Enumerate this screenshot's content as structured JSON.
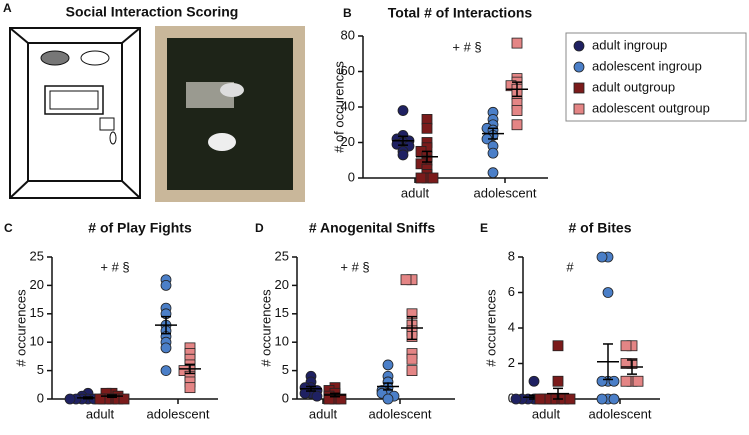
{
  "panel_a": {
    "label": "A",
    "title": "Social Interaction Scoring"
  },
  "chart_data": [
    {
      "type": "strip",
      "label": "B",
      "title": "Total # of Interactions",
      "annotation": "+ # §",
      "ylabel": "# of occurences",
      "categories": [
        "adult",
        "adolescent"
      ],
      "ylim": [
        0,
        80
      ],
      "yticks": [
        0,
        20,
        40,
        60,
        80
      ],
      "legend": "right",
      "series": [
        {
          "name": "adult ingroup",
          "color": "#1f2162",
          "marker": "circle",
          "values": [
            [
              38,
              24,
              22,
              21,
              20,
              19,
              18,
              15,
              13
            ],
            []
          ],
          "means": [
            21,
            null
          ],
          "errors": [
            2.5,
            null
          ]
        },
        {
          "name": "adolescent ingroup",
          "color": "#4b7fc8",
          "marker": "circle",
          "values": [
            [],
            [
              37,
              33,
              30,
              28,
              27,
              24,
              22,
              18,
              14,
              3
            ]
          ],
          "means": [
            null,
            25
          ],
          "errors": [
            null,
            3
          ]
        },
        {
          "name": "adult outgroup",
          "color": "#7b1b1b",
          "marker": "square",
          "values": [
            [
              33,
              28,
              20,
              17,
              15,
              12,
              10,
              8,
              5,
              2,
              0,
              0,
              0
            ],
            []
          ],
          "means": [
            12,
            null
          ],
          "errors": [
            3,
            null
          ]
        },
        {
          "name": "adolescent outgroup",
          "color": "#e48585",
          "marker": "square",
          "values": [
            [],
            [
              76,
              56,
              54,
              52,
              50,
              47,
              42,
              38,
              30
            ]
          ],
          "means": [
            null,
            50
          ],
          "errors": [
            null,
            4
          ]
        }
      ]
    },
    {
      "type": "strip",
      "label": "C",
      "title": "# of Play Fights",
      "annotation": "+ # §",
      "ylabel": "# occurences",
      "categories": [
        "adult",
        "adolescent"
      ],
      "ylim": [
        0,
        25
      ],
      "yticks": [
        0,
        5,
        10,
        15,
        20,
        25
      ],
      "series": [
        {
          "color": "#1f2162",
          "marker": "circle",
          "values": [
            [
              1,
              0.5,
              0,
              0,
              0,
              0,
              0,
              0
            ],
            []
          ],
          "means": [
            0.2,
            null
          ],
          "errors": [
            0.15,
            null
          ]
        },
        {
          "color": "#4b7fc8",
          "marker": "circle",
          "values": [
            [],
            [
              21,
              20,
              16,
              15,
              13,
              12,
              11,
              10,
              9,
              5
            ]
          ],
          "means": [
            null,
            13
          ],
          "errors": [
            null,
            1.5
          ]
        },
        {
          "color": "#7b1b1b",
          "marker": "square",
          "values": [
            [
              1,
              1,
              0.5,
              0,
              0,
              0,
              0,
              0
            ],
            []
          ],
          "means": [
            0.5,
            null
          ],
          "errors": [
            0.2,
            null
          ]
        },
        {
          "color": "#e48585",
          "marker": "square",
          "values": [
            [],
            [
              9,
              8,
              7,
              6,
              5,
              5,
              4,
              3,
              2
            ]
          ],
          "means": [
            null,
            5.3
          ],
          "errors": [
            null,
            0.8
          ]
        }
      ]
    },
    {
      "type": "strip",
      "label": "D",
      "title": "# Anogenital Sniffs",
      "annotation": "+ # §",
      "ylabel": "# occurences",
      "categories": [
        "adult",
        "adolescent"
      ],
      "ylim": [
        0,
        25
      ],
      "yticks": [
        0,
        5,
        10,
        15,
        20,
        25
      ],
      "series": [
        {
          "color": "#1f2162",
          "marker": "circle",
          "values": [
            [
              4,
              3,
              2,
              2,
              1.5,
              1,
              1,
              0.5
            ],
            []
          ],
          "means": [
            1.8,
            null
          ],
          "errors": [
            0.4,
            null
          ]
        },
        {
          "color": "#4b7fc8",
          "marker": "circle",
          "values": [
            [],
            [
              6,
              4,
              3,
              2,
              1.5,
              1,
              1,
              0.5,
              0
            ]
          ],
          "means": [
            null,
            2.2
          ],
          "errors": [
            null,
            0.6
          ]
        },
        {
          "color": "#7b1b1b",
          "marker": "square",
          "values": [
            [
              2,
              1.5,
              1,
              0.5,
              0,
              0,
              0
            ],
            []
          ],
          "means": [
            0.7,
            null
          ],
          "errors": [
            0.3,
            null
          ]
        },
        {
          "color": "#e48585",
          "marker": "square",
          "values": [
            [],
            [
              21,
              21,
              15,
              13,
              12,
              11,
              8,
              7,
              5
            ]
          ],
          "means": [
            null,
            12.5
          ],
          "errors": [
            null,
            2
          ]
        }
      ]
    },
    {
      "type": "strip",
      "label": "E",
      "title": "# of Bites",
      "annotation": "#",
      "ylabel": "# occurences",
      "categories": [
        "adult",
        "adolescent"
      ],
      "ylim": [
        0,
        8
      ],
      "yticks": [
        0,
        2,
        4,
        6,
        8
      ],
      "series": [
        {
          "color": "#1f2162",
          "marker": "circle",
          "values": [
            [
              1,
              0,
              0,
              0,
              0,
              0,
              0,
              0
            ],
            []
          ],
          "means": [
            0.1,
            null
          ],
          "errors": [
            0.1,
            null
          ]
        },
        {
          "color": "#4b7fc8",
          "marker": "circle",
          "values": [
            [],
            [
              8,
              8,
              6,
              1,
              1,
              1,
              0,
              0,
              0
            ]
          ],
          "means": [
            null,
            2.1
          ],
          "errors": [
            null,
            1
          ]
        },
        {
          "color": "#7b1b1b",
          "marker": "square",
          "values": [
            [
              3,
              1,
              0,
              0,
              0,
              0,
              0,
              0
            ],
            []
          ],
          "means": [
            0.3,
            null
          ],
          "errors": [
            0.3,
            null
          ]
        },
        {
          "color": "#e48585",
          "marker": "square",
          "values": [
            [],
            [
              3,
              3,
              2,
              2,
              1,
              1,
              1
            ]
          ],
          "means": [
            null,
            1.8
          ],
          "errors": [
            null,
            0.4
          ]
        }
      ]
    }
  ]
}
